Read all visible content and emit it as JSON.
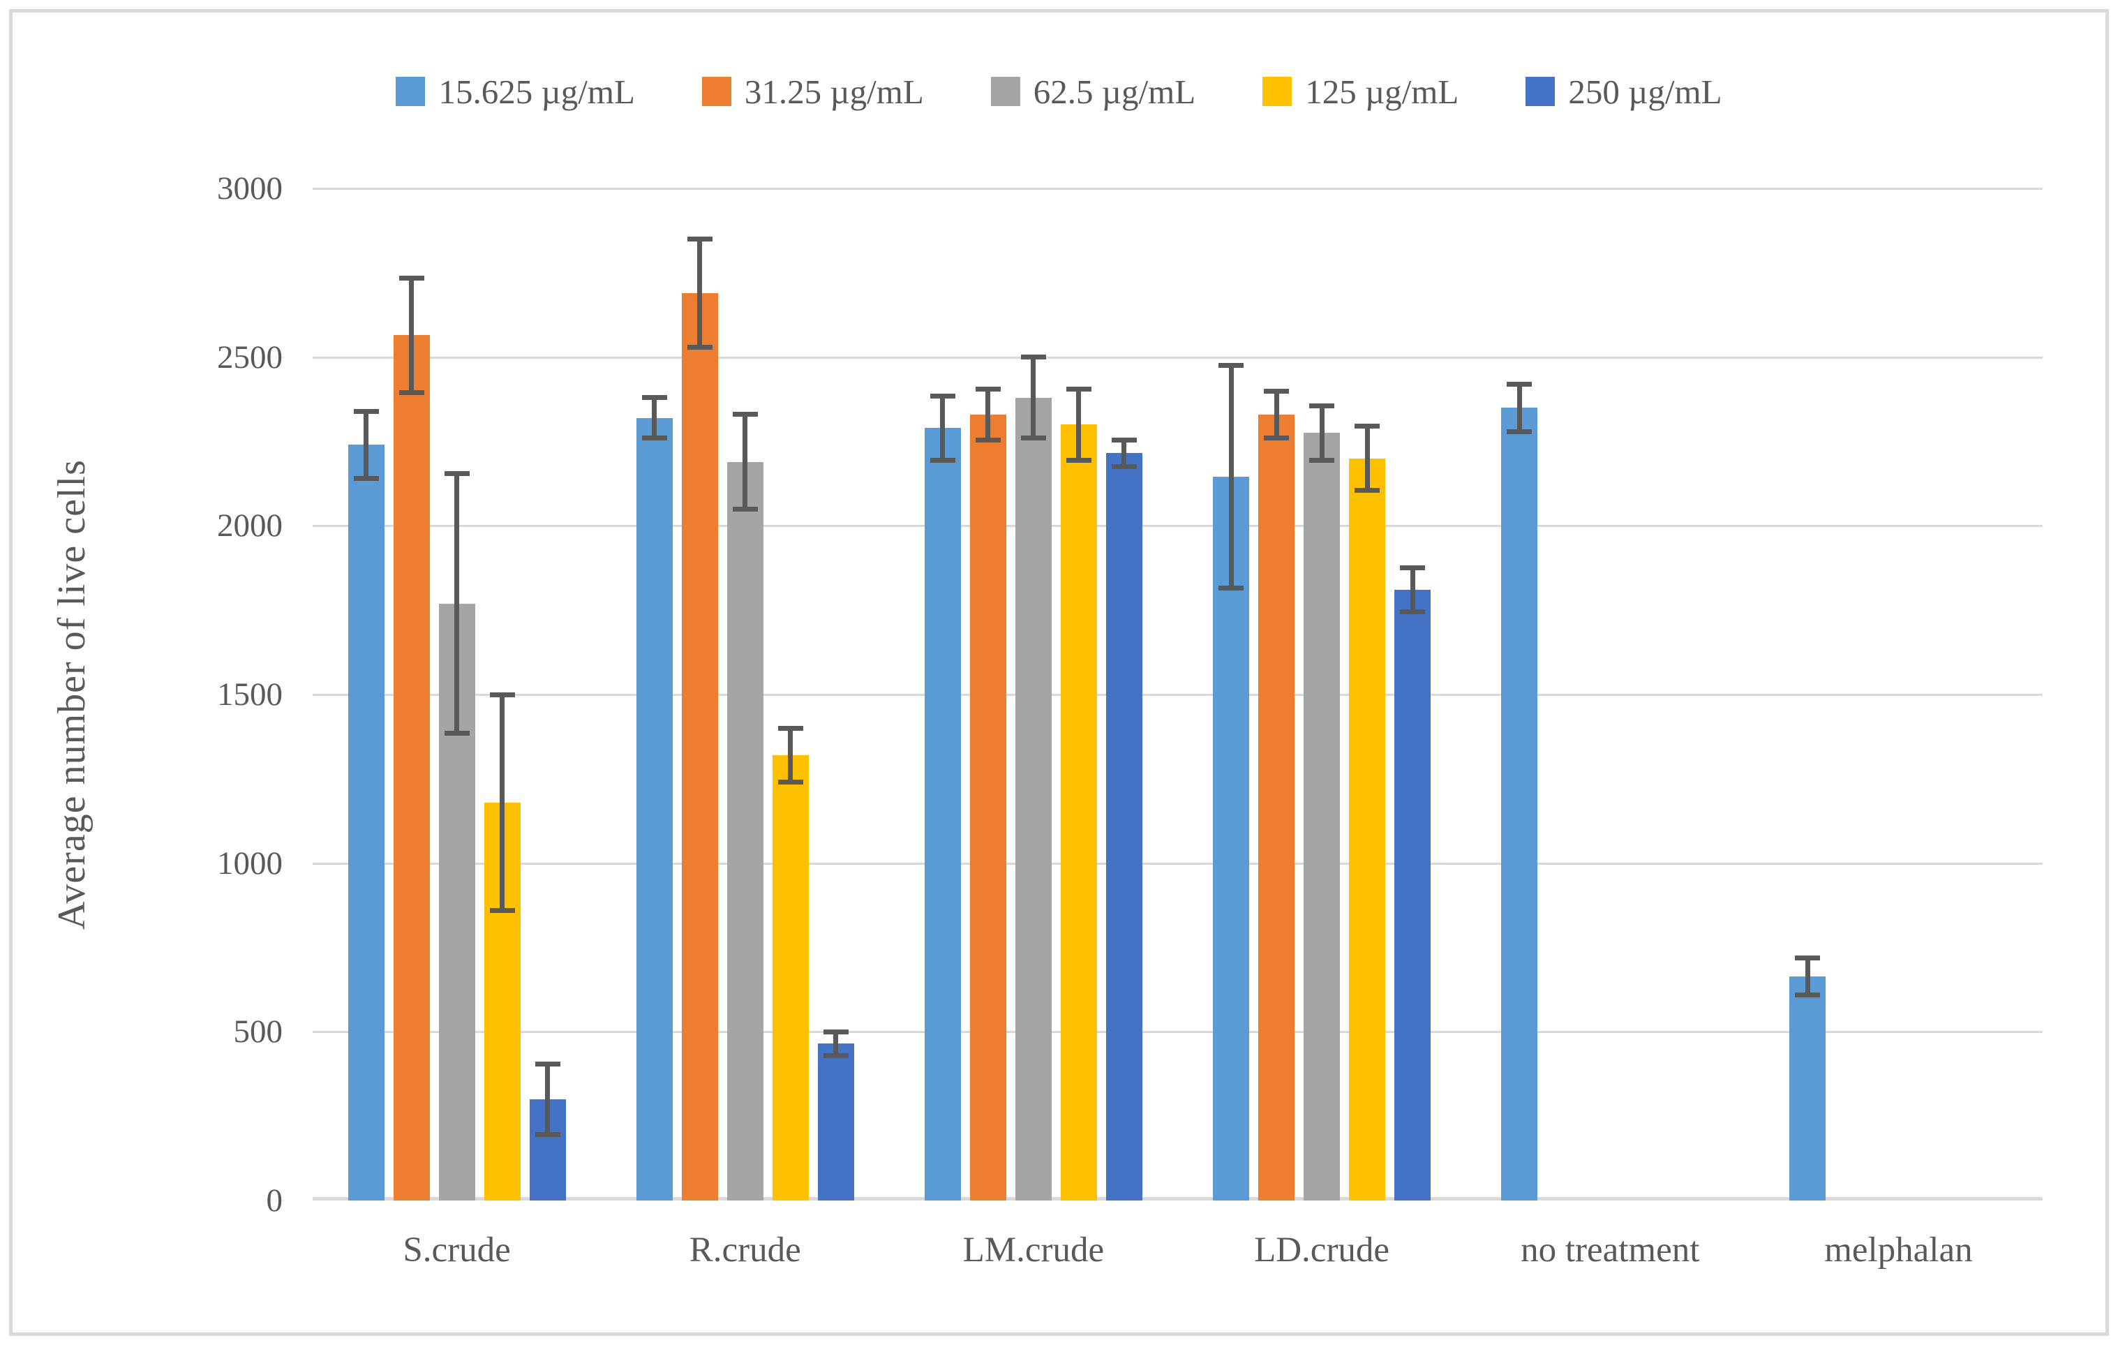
{
  "figure": {
    "frame_color": "#dadada",
    "background_color": "#ffffff",
    "text_color": "#595959",
    "gridline_color": "#d9d9d9",
    "error_bar_color": "#595959"
  },
  "chart_data": {
    "type": "bar",
    "ylabel": "Average number of live cells",
    "xlabel": "",
    "ylim": [
      0,
      3000
    ],
    "yticks": [
      0,
      500,
      1000,
      1500,
      2000,
      2500,
      3000
    ],
    "grid": "horizontal",
    "legend_position": "top",
    "categories": [
      "S.crude",
      "R.crude",
      "LM.crude",
      "LD.crude",
      "no treatment",
      "melphalan"
    ],
    "series": [
      {
        "name": "15.625 µg/mL",
        "color": "#5B9BD5",
        "values": [
          2240,
          2320,
          2290,
          2145,
          2350,
          665
        ],
        "errors": [
          100,
          60,
          95,
          330,
          70,
          55
        ]
      },
      {
        "name": "31.25 µg/mL",
        "color": "#ED7D31",
        "values": [
          2565,
          2690,
          2330,
          2330,
          null,
          null
        ],
        "errors": [
          170,
          160,
          75,
          70,
          null,
          null
        ]
      },
      {
        "name": "62.5 µg/mL",
        "color": "#A5A5A5",
        "values": [
          1770,
          2190,
          2380,
          2275,
          null,
          null
        ],
        "errors": [
          385,
          140,
          120,
          80,
          null,
          null
        ]
      },
      {
        "name": "125 µg/mL",
        "color": "#FFC000",
        "values": [
          1180,
          1320,
          2300,
          2200,
          null,
          null
        ],
        "errors": [
          320,
          80,
          105,
          95,
          null,
          null
        ]
      },
      {
        "name": "250 µg/mL",
        "color": "#4472C4",
        "values": [
          300,
          465,
          2215,
          1810,
          null,
          null
        ],
        "errors": [
          105,
          35,
          40,
          65,
          null,
          null
        ]
      }
    ]
  }
}
